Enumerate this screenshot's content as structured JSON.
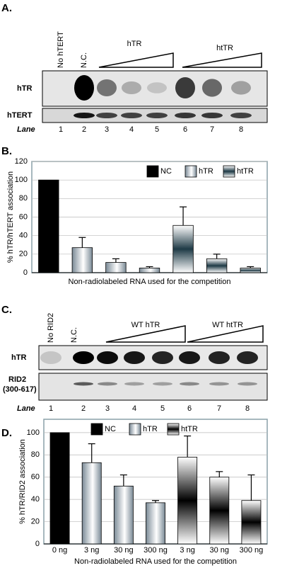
{
  "panel_a": {
    "label": "A.",
    "lane_headers": [
      "No hTERT",
      "N.C."
    ],
    "group_labels": [
      "hTR",
      "htTR"
    ],
    "row_labels": [
      "hTR",
      "hTERT"
    ],
    "lane_title": "Lane",
    "lanes": [
      "1",
      "2",
      "3",
      "4",
      "5",
      "6",
      "7",
      "8"
    ]
  },
  "panel_c": {
    "label": "C.",
    "lane_headers": [
      "No RID2",
      "N.C."
    ],
    "group_labels": [
      "WT hTR",
      "WT htTR"
    ],
    "row_labels": [
      "hTR",
      "RID2",
      "(300-617)"
    ],
    "lane_title": "Lane",
    "lanes": [
      "1",
      "2",
      "3",
      "4",
      "5",
      "6",
      "7",
      "8"
    ]
  },
  "chart_data": [
    {
      "panel": "B.",
      "type": "bar",
      "y_label": "% hTR/hTERT association",
      "x_label": "Non-radiolabeled RNA used for the competition",
      "categories": [
        null,
        null,
        null,
        null,
        null,
        null,
        null
      ],
      "series": [
        {
          "name": "NC",
          "color": "#000000",
          "gradient": "none",
          "values": [
            100,
            null,
            null,
            null,
            null,
            null,
            null
          ],
          "errors": [
            null,
            null,
            null,
            null,
            null,
            null,
            null
          ]
        },
        {
          "name": "hTR",
          "color": "#7a8a96",
          "gradient": "horizontal",
          "values": [
            null,
            27,
            11,
            5,
            null,
            null,
            null
          ],
          "errors": [
            null,
            11,
            4,
            1.5,
            null,
            null,
            null
          ]
        },
        {
          "name": "htTR",
          "color": "#1e3a46",
          "gradient": "vertical",
          "values": [
            null,
            null,
            null,
            null,
            51,
            15,
            5
          ],
          "errors": [
            null,
            null,
            null,
            null,
            20,
            5,
            1.5
          ]
        }
      ],
      "ylim": [
        0,
        120
      ],
      "yticks": [
        0,
        20,
        40,
        60,
        80,
        100,
        120
      ],
      "grid": true,
      "legend": "upper right"
    },
    {
      "panel": "D.",
      "type": "bar",
      "y_label": "% hTR/RID2 association",
      "x_label": "Non-radiolabeled RNA used for the competition",
      "categories": [
        "0 ng",
        "3 ng",
        "30 ng",
        "300 ng",
        "3 ng",
        "30 ng",
        "300 ng"
      ],
      "series": [
        {
          "name": "NC",
          "color": "#000000",
          "gradient": "none",
          "values": [
            100,
            null,
            null,
            null,
            null,
            null,
            null
          ],
          "errors": [
            null,
            null,
            null,
            null,
            null,
            null,
            null
          ]
        },
        {
          "name": "hTR",
          "color": "#7a8a96",
          "gradient": "horizontal",
          "values": [
            null,
            73,
            52,
            37,
            null,
            null,
            null
          ],
          "errors": [
            null,
            17,
            10,
            2,
            null,
            null,
            null
          ]
        },
        {
          "name": "htTR",
          "color": "#000000",
          "gradient": "vertical",
          "values": [
            null,
            null,
            null,
            null,
            78,
            60,
            39
          ],
          "errors": [
            null,
            null,
            null,
            null,
            19,
            5,
            23
          ]
        }
      ],
      "ylim": [
        0,
        112
      ],
      "yticks": [
        0,
        20,
        40,
        60,
        80,
        100
      ],
      "grid": true,
      "legend": "upper center"
    }
  ]
}
